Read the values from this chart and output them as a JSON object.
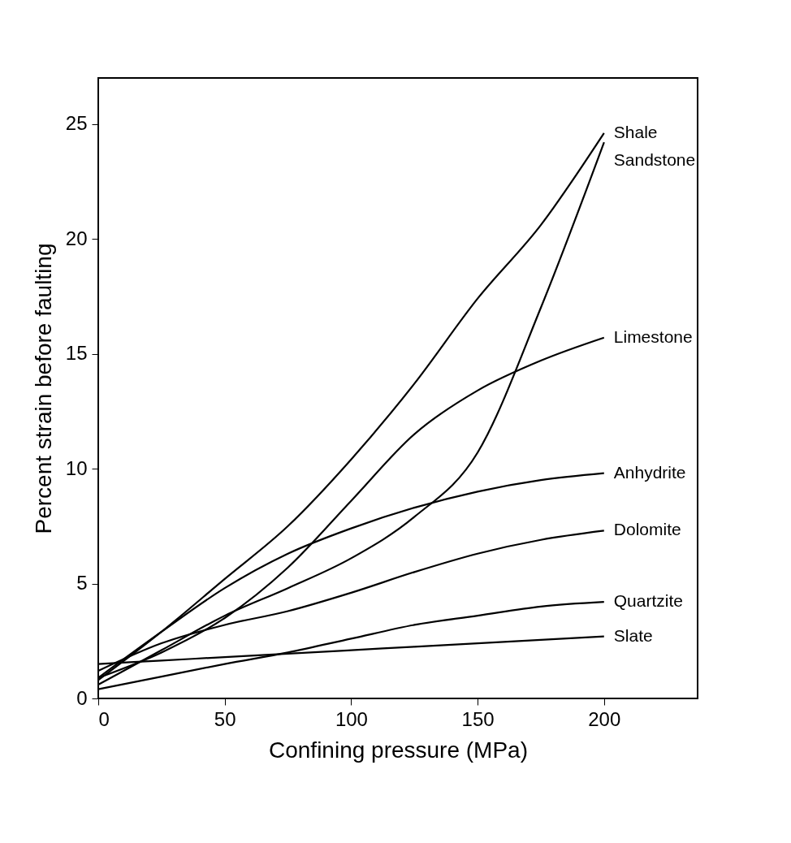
{
  "chart_data": {
    "type": "line",
    "xlabel": "Confining pressure (MPa)",
    "ylabel": "Percent strain before faulting",
    "x": [
      0,
      25,
      50,
      75,
      100,
      125,
      150,
      175,
      200
    ],
    "xlim": [
      0,
      237
    ],
    "xticks": [
      0,
      50,
      100,
      150,
      200
    ],
    "ylim": [
      0,
      27
    ],
    "yticks": [
      0,
      5,
      10,
      15,
      20,
      25
    ],
    "grid": false,
    "legend": false,
    "marker": "none",
    "line_style": "solid",
    "series": [
      {
        "name": "Shale",
        "color": "#000000",
        "values": [
          0.8,
          2.9,
          5.2,
          7.5,
          10.4,
          13.7,
          17.4,
          20.6,
          24.6
        ]
      },
      {
        "name": "Sandstone",
        "color": "#000000",
        "values": [
          0.6,
          2.1,
          3.6,
          4.8,
          6.1,
          7.9,
          10.7,
          17.0,
          24.2
        ]
      },
      {
        "name": "Limestone",
        "color": "#000000",
        "values": [
          0.9,
          2.0,
          3.5,
          5.7,
          8.6,
          11.5,
          13.4,
          14.7,
          15.7
        ]
      },
      {
        "name": "Anhydrite",
        "color": "#000000",
        "values": [
          0.9,
          2.9,
          4.8,
          6.3,
          7.4,
          8.3,
          9.0,
          9.5,
          9.8
        ]
      },
      {
        "name": "Dolomite",
        "color": "#000000",
        "values": [
          1.2,
          2.4,
          3.2,
          3.8,
          4.6,
          5.5,
          6.3,
          6.9,
          7.3
        ]
      },
      {
        "name": "Quartzite",
        "color": "#000000",
        "values": [
          0.4,
          0.95,
          1.5,
          2.0,
          2.6,
          3.2,
          3.6,
          4.0,
          4.2
        ]
      },
      {
        "name": "Slate",
        "color": "#000000",
        "values": [
          1.5,
          1.65,
          1.8,
          1.95,
          2.1,
          2.25,
          2.4,
          2.55,
          2.7
        ]
      }
    ]
  }
}
